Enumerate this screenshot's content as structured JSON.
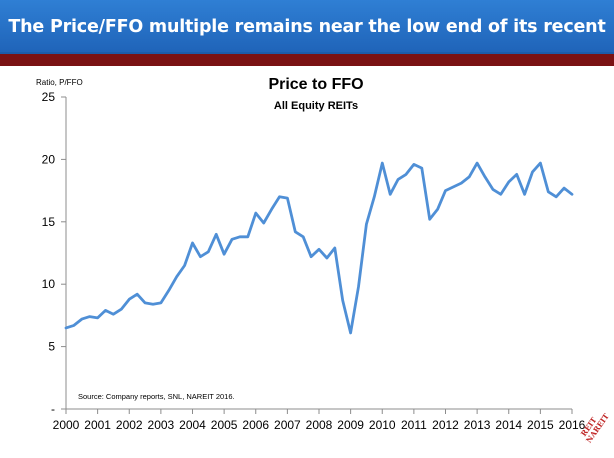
{
  "header": {
    "title": "The Price/FFO multiple remains near the low end of its recent range"
  },
  "chart_data": {
    "type": "line",
    "title": "Price to FFO",
    "subtitle": "All Equity REITs",
    "ylabel": "Ratio, P/FFO",
    "xlabel": "",
    "ylim": [
      0,
      25
    ],
    "xlim": [
      2000,
      2016
    ],
    "y_ticks": [
      {
        "value": 0,
        "label": "-"
      },
      {
        "value": 5,
        "label": "5"
      },
      {
        "value": 10,
        "label": "10"
      },
      {
        "value": 15,
        "label": "15"
      },
      {
        "value": 20,
        "label": "20"
      },
      {
        "value": 25,
        "label": "25"
      }
    ],
    "x_ticks": [
      "2000",
      "2001",
      "2002",
      "2003",
      "2004",
      "2005",
      "2006",
      "2007",
      "2008",
      "2009",
      "2010",
      "2011",
      "2012",
      "2013",
      "2014",
      "2015",
      "2016"
    ],
    "grid": false,
    "legend": "none",
    "line_color": "#4f8fd6",
    "source_note": "Source: Company reports, SNL, NAREIT 2016.",
    "series": [
      {
        "x": [
          2000.0,
          2000.25,
          2000.5,
          2000.75,
          2001.0,
          2001.25,
          2001.5,
          2001.75,
          2002.0,
          2002.25,
          2002.5,
          2002.75,
          2003.0,
          2003.25,
          2003.5,
          2003.75,
          2004.0,
          2004.25,
          2004.5,
          2004.75,
          2005.0,
          2005.25,
          2005.5,
          2005.75,
          2006.0,
          2006.25,
          2006.5,
          2006.75,
          2007.0,
          2007.25,
          2007.5,
          2007.75,
          2008.0,
          2008.25,
          2008.5,
          2008.75,
          2009.0,
          2009.25,
          2009.5,
          2009.75,
          2010.0,
          2010.25,
          2010.5,
          2010.75,
          2011.0,
          2011.25,
          2011.5,
          2011.75,
          2012.0,
          2012.25,
          2012.5,
          2012.75,
          2013.0,
          2013.25,
          2013.5,
          2013.75,
          2014.0,
          2014.25,
          2014.5,
          2014.75,
          2015.0,
          2015.25,
          2015.5,
          2015.75,
          2016.0
        ],
        "values": [
          6.5,
          6.7,
          7.2,
          7.4,
          7.3,
          7.9,
          7.6,
          8.0,
          8.8,
          9.2,
          8.5,
          8.4,
          8.5,
          9.5,
          10.6,
          11.5,
          13.3,
          12.2,
          12.6,
          14.0,
          12.4,
          13.6,
          13.8,
          13.8,
          15.7,
          14.9,
          16.0,
          17.0,
          16.9,
          14.2,
          13.8,
          12.2,
          12.8,
          12.1,
          12.9,
          8.7,
          6.1,
          9.8,
          14.8,
          17.0,
          19.7,
          17.2,
          18.4,
          18.8,
          19.6,
          19.3,
          15.2,
          16.0,
          17.5,
          17.8,
          18.1,
          18.6,
          19.7,
          18.6,
          17.6,
          17.2,
          18.2,
          18.8,
          17.2,
          19.0,
          19.7,
          17.4,
          17.0,
          17.7,
          17.2
        ]
      }
    ]
  }
}
